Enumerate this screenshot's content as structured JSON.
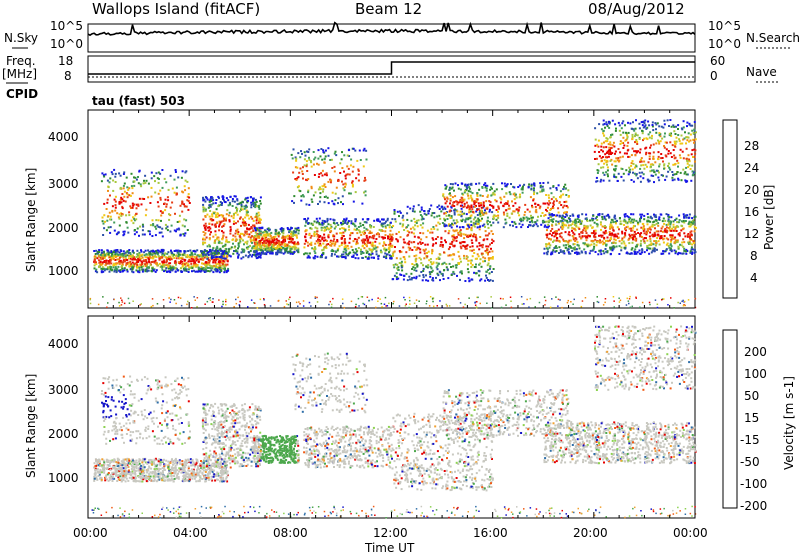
{
  "header": {
    "site": "Wallops Island (fitACF)",
    "beam": "Beam 12",
    "date": "08/Aug/2012"
  },
  "left_labels": {
    "nsky": "N.Sky",
    "freq_top": "Freq.",
    "freq_unit": "[MHz]",
    "cpid": "CPID"
  },
  "right_labels": {
    "nsearch": "N.Search",
    "nave": "Nave"
  },
  "program_label": "tau (fast) 503",
  "colors": {
    "power": [
      "#1414e6",
      "#2b4fa8",
      "#2e8a2e",
      "#3f9b5a",
      "#a8c83c",
      "#f0c814",
      "#f08c14",
      "#e63c14",
      "#e60000"
    ],
    "velocity": [
      "#e60000",
      "#f05a14",
      "#f0a030",
      "#c8c8c0",
      "#8cd250",
      "#4ca84c",
      "#2e6ea8",
      "#1414c8"
    ]
  },
  "chart_data": [
    {
      "type": "line",
      "name": "noise-panel",
      "y_labels_left": [
        "10^5",
        "10^0"
      ],
      "y_labels_right": [
        "10^5",
        "10^0"
      ],
      "legend_left": "N.Sky",
      "legend_right": "N.Search"
    },
    {
      "type": "line",
      "name": "frequency-panel",
      "y_ticks_left": [
        "18",
        "8"
      ],
      "y_ticks_right": [
        "60",
        "0"
      ],
      "x": [
        0,
        12,
        12,
        24
      ],
      "freq_mhz": [
        10.5,
        10.5,
        16.5,
        16.5
      ],
      "legend_left": "Freq. [MHz]",
      "legend_right": "Nave"
    },
    {
      "type": "heatmap",
      "name": "power-panel",
      "xlabel": "",
      "ylabel": "Slant Range [km]",
      "y_ticks": [
        1000,
        2000,
        3000,
        4000
      ],
      "ylim": [
        180,
        4600
      ],
      "xlim": [
        0,
        24
      ],
      "colorbar": {
        "label": "Power [dB]",
        "ticks": [
          4,
          8,
          12,
          16,
          20,
          24,
          28
        ]
      }
    },
    {
      "type": "heatmap",
      "name": "velocity-panel",
      "xlabel": "Time UT",
      "ylabel": "Slant Range [km]",
      "y_ticks": [
        1000,
        2000,
        3000,
        4000
      ],
      "ylim": [
        180,
        4600
      ],
      "xlim": [
        0,
        24
      ],
      "x_ticks": [
        "00:00",
        "04:00",
        "08:00",
        "12:00",
        "16:00",
        "20:00",
        "00:00"
      ],
      "colorbar": {
        "label": "Velocity [m s-1]",
        "ticks": [
          200,
          100,
          50,
          15,
          -15,
          -50,
          -100,
          -200
        ]
      }
    }
  ]
}
